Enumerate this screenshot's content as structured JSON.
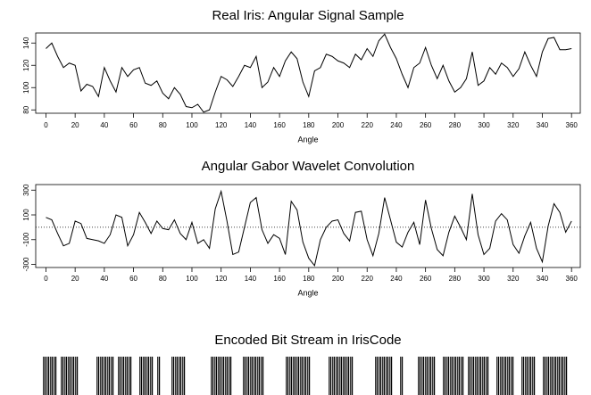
{
  "chart_data": [
    {
      "type": "line",
      "title": "Real Iris:  Angular Signal Sample",
      "xlabel": "Angle",
      "x": [
        0,
        4,
        8,
        12,
        16,
        20,
        24,
        28,
        32,
        36,
        40,
        44,
        48,
        52,
        56,
        60,
        64,
        68,
        72,
        76,
        80,
        84,
        88,
        92,
        96,
        100,
        104,
        108,
        112,
        116,
        120,
        124,
        128,
        132,
        136,
        140,
        144,
        148,
        152,
        156,
        160,
        164,
        168,
        172,
        176,
        180,
        184,
        188,
        192,
        196,
        200,
        204,
        208,
        212,
        216,
        220,
        224,
        228,
        232,
        236,
        240,
        244,
        248,
        252,
        256,
        260,
        264,
        268,
        272,
        276,
        280,
        284,
        288,
        292,
        296,
        300,
        304,
        308,
        312,
        316,
        320,
        324,
        328,
        332,
        336,
        340,
        344,
        348,
        352,
        356,
        360
      ],
      "values": [
        135,
        140,
        128,
        118,
        122,
        120,
        97,
        103,
        101,
        92,
        118,
        106,
        96,
        118,
        110,
        116,
        118,
        104,
        102,
        106,
        95,
        90,
        100,
        94,
        83,
        82,
        85,
        78,
        80,
        96,
        110,
        107,
        101,
        110,
        120,
        118,
        128,
        100,
        105,
        118,
        110,
        124,
        132,
        126,
        105,
        92,
        115,
        118,
        130,
        128,
        124,
        122,
        118,
        130,
        125,
        135,
        128,
        142,
        148,
        136,
        126,
        112,
        100,
        118,
        122,
        136,
        120,
        108,
        120,
        106,
        96,
        100,
        108,
        132,
        102,
        106,
        118,
        112,
        122,
        118,
        110,
        117,
        132,
        120,
        110,
        132,
        144,
        145,
        134,
        134,
        135
      ],
      "color": "#000000",
      "xlim": [
        -7,
        366
      ],
      "ylim": [
        77,
        149
      ],
      "xticks": [
        0,
        20,
        40,
        60,
        80,
        100,
        120,
        140,
        160,
        180,
        200,
        220,
        240,
        260,
        280,
        300,
        320,
        340,
        360
      ],
      "yticks": [
        80,
        100,
        120,
        140
      ]
    },
    {
      "type": "line",
      "title": "Angular Gabor Wavelet Convolution",
      "xlabel": "Angle",
      "x": [
        0,
        4,
        8,
        12,
        16,
        20,
        24,
        28,
        32,
        36,
        40,
        44,
        48,
        52,
        56,
        60,
        64,
        68,
        72,
        76,
        80,
        84,
        88,
        92,
        96,
        100,
        104,
        108,
        112,
        116,
        120,
        124,
        128,
        132,
        136,
        140,
        144,
        148,
        152,
        156,
        160,
        164,
        168,
        172,
        176,
        180,
        184,
        188,
        192,
        196,
        200,
        204,
        208,
        212,
        216,
        220,
        224,
        228,
        232,
        236,
        240,
        244,
        248,
        252,
        256,
        260,
        264,
        268,
        272,
        276,
        280,
        284,
        288,
        292,
        296,
        300,
        304,
        308,
        312,
        316,
        320,
        324,
        328,
        332,
        336,
        340,
        344,
        348,
        352,
        356,
        360
      ],
      "values": [
        80,
        60,
        -50,
        -150,
        -130,
        50,
        30,
        -90,
        -100,
        -110,
        -130,
        -60,
        100,
        80,
        -150,
        -60,
        120,
        40,
        -50,
        50,
        -10,
        -20,
        60,
        -50,
        -100,
        40,
        -130,
        -100,
        -170,
        150,
        290,
        50,
        -220,
        -200,
        0,
        200,
        240,
        -20,
        -130,
        -60,
        -90,
        -220,
        210,
        140,
        -120,
        -250,
        -310,
        -100,
        0,
        50,
        60,
        -50,
        -110,
        120,
        130,
        -100,
        -230,
        -50,
        240,
        60,
        -120,
        -160,
        -40,
        40,
        -140,
        220,
        -10,
        -180,
        -230,
        -40,
        90,
        0,
        -100,
        270,
        -60,
        -220,
        -170,
        50,
        110,
        60,
        -140,
        -210,
        -70,
        40,
        -170,
        -280,
        10,
        190,
        120,
        -40,
        50
      ],
      "color": "#000000",
      "xlim": [
        -7,
        366
      ],
      "ylim": [
        -325,
        345
      ],
      "hline": 0,
      "xticks": [
        0,
        20,
        40,
        60,
        80,
        100,
        120,
        140,
        160,
        180,
        200,
        220,
        240,
        260,
        280,
        300,
        320,
        340,
        360
      ],
      "yticks": [
        -300,
        -100,
        100,
        300
      ]
    },
    {
      "type": "bitstream",
      "title": "Encoded Bit Stream in IrisCode",
      "color": "#000000",
      "values": [
        1,
        1,
        1,
        1,
        0,
        1,
        1,
        1,
        1,
        1,
        0,
        0,
        0,
        0,
        0,
        1,
        1,
        1,
        1,
        1,
        0,
        1,
        1,
        1,
        1,
        0,
        0,
        1,
        1,
        1,
        1,
        0,
        1,
        0,
        0,
        0,
        1,
        1,
        1,
        1,
        0,
        0,
        0,
        0,
        0,
        0,
        0,
        1,
        1,
        1,
        1,
        1,
        1,
        0,
        0,
        0,
        1,
        1,
        1,
        1,
        1,
        1,
        0,
        0,
        0,
        0,
        0,
        0,
        1,
        1,
        1,
        1,
        1,
        1,
        1,
        0,
        0,
        0,
        0,
        0,
        1,
        1,
        1,
        1,
        1,
        1,
        1,
        0,
        0,
        0,
        0,
        0,
        0,
        1,
        1,
        1,
        1,
        1,
        0,
        0,
        1,
        0,
        0,
        0,
        0,
        1,
        1,
        1,
        1,
        1,
        0,
        0,
        1,
        1,
        1,
        1,
        1,
        1,
        0,
        1,
        1,
        1,
        1,
        1,
        1,
        0,
        0,
        1,
        1,
        1,
        1,
        1,
        0,
        0,
        1,
        1,
        1,
        1,
        0,
        0,
        1,
        1,
        1,
        1,
        1,
        1,
        1,
        0
      ]
    }
  ]
}
